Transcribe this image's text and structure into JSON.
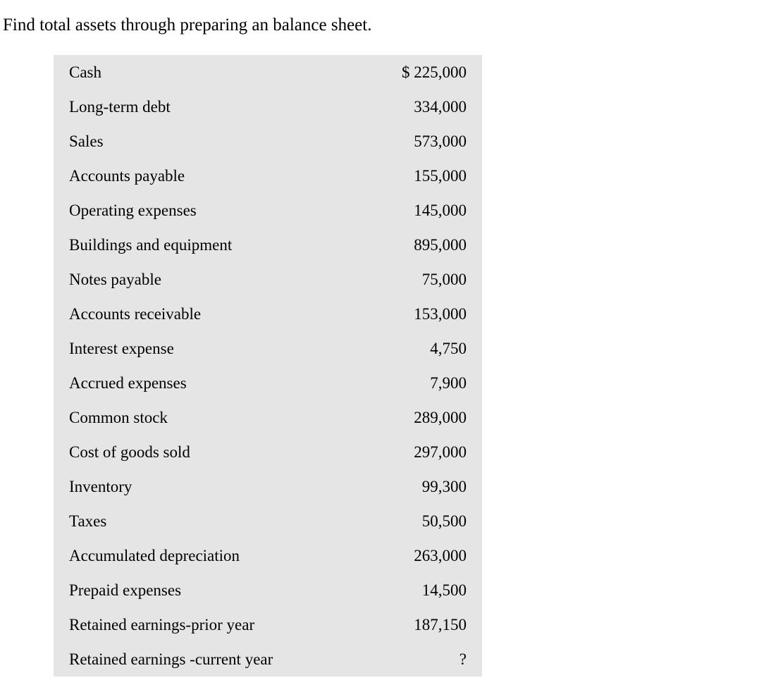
{
  "heading": "Find total assets through preparing an balance sheet.",
  "table": {
    "background_color": "#e5e5e5",
    "text_color": "#000000",
    "font_family": "Times New Roman",
    "label_fontsize": 23,
    "value_fontsize": 23,
    "rows": [
      {
        "label": "Cash",
        "value": "$ 225,000"
      },
      {
        "label": "Long-term debt",
        "value": "334,000"
      },
      {
        "label": "Sales",
        "value": "573,000"
      },
      {
        "label": "Accounts payable",
        "value": "155,000"
      },
      {
        "label": "Operating expenses",
        "value": "145,000"
      },
      {
        "label": "Buildings and equipment",
        "value": "895,000"
      },
      {
        "label": "Notes payable",
        "value": "75,000"
      },
      {
        "label": "Accounts receivable",
        "value": "153,000"
      },
      {
        "label": "Interest expense",
        "value": "4,750"
      },
      {
        "label": "Accrued expenses",
        "value": "7,900"
      },
      {
        "label": "Common stock",
        "value": "289,000"
      },
      {
        "label": "Cost of goods sold",
        "value": "297,000"
      },
      {
        "label": "Inventory",
        "value": "99,300"
      },
      {
        "label": "Taxes",
        "value": "50,500"
      },
      {
        "label": "Accumulated depreciation",
        "value": "263,000"
      },
      {
        "label": "Prepaid expenses",
        "value": "14,500"
      },
      {
        "label": "Retained earnings-prior year",
        "value": "187,150"
      },
      {
        "label": "Retained earnings -current year",
        "value": "?"
      }
    ]
  }
}
